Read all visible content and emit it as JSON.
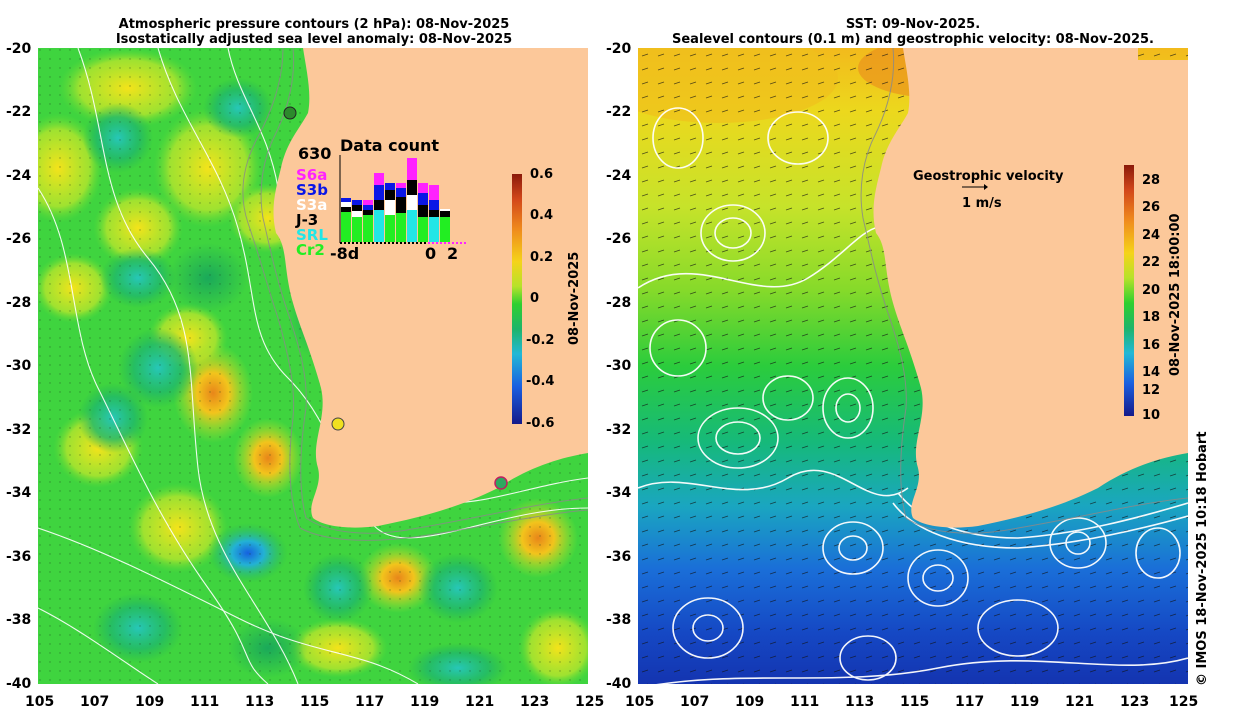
{
  "left_panel": {
    "title_line1": "Atmospheric pressure contours (2 hPa): 08-Nov-2025",
    "title_line2": "Isostatically adjusted sea level anomaly: 08-Nov-2025",
    "colorbar_ticks": [
      "0.6",
      "0.4",
      "0.2",
      "0",
      "-0.2",
      "-0.4",
      "-0.6"
    ],
    "colorbar_label": "08-Nov-2025",
    "inset": {
      "title": "Data count",
      "max_count": "630",
      "missions": [
        {
          "name": "S6a",
          "color": "#ff22ff"
        },
        {
          "name": "S3b",
          "color": "#0a16e6"
        },
        {
          "name": "S3a",
          "color": "#ffffff"
        },
        {
          "name": "J-3",
          "color": "#000000"
        },
        {
          "name": "SRL",
          "color": "#22e6e6"
        },
        {
          "name": "Cr2",
          "color": "#22ee22"
        }
      ],
      "x_start": "-8d",
      "x_zero": "0",
      "x_end": "2"
    }
  },
  "right_panel": {
    "title_line1": "SST: 09-Nov-2025.",
    "title_line2": "Sealevel contours (0.1 m) and geostrophic velocity: 08-Nov-2025.",
    "colorbar_ticks": [
      "28",
      "26",
      "24",
      "22",
      "20",
      "18",
      "16",
      "14",
      "12",
      "10"
    ],
    "colorbar_label": "08-Nov-2025 18:00:00",
    "legend_title": "Geostrophic velocity",
    "legend_scale": "1 m/s"
  },
  "axes": {
    "lat_ticks": [
      "-20",
      "-22",
      "-24",
      "-26",
      "-28",
      "-30",
      "-32",
      "-34",
      "-36",
      "-38",
      "-40"
    ],
    "lon_ticks": [
      "105",
      "107",
      "109",
      "111",
      "113",
      "115",
      "117",
      "119",
      "121",
      "123",
      "125"
    ]
  },
  "credit": "© IMOS 18-Nov-2025 10:18 Hobart",
  "colors": {
    "land": "#fcc89a",
    "ocean_anomaly_base": "#33d633",
    "contour": "#ffffff",
    "coast_line": "#8a8a8a"
  }
}
